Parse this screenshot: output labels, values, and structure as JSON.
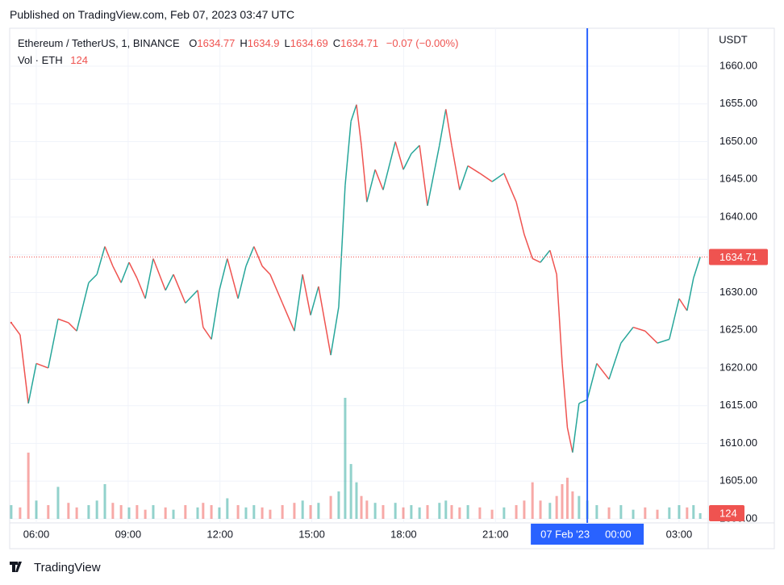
{
  "published": "Published on TradingView.com, Feb 07, 2023 03:47 UTC",
  "footer": "TradingView",
  "chart_data": {
    "type": "line",
    "title": "Ethereum / TetherUS, 1, BINANCE",
    "ohlc": [
      {
        "label": "O",
        "value": 1634.77
      },
      {
        "label": "H",
        "value": 1634.9
      },
      {
        "label": "L",
        "value": 1634.69
      },
      {
        "label": "C",
        "value": 1634.71
      }
    ],
    "change": "−0.07 (−0.00%)",
    "volume_title": "Vol · ETH",
    "currency": "USDT",
    "up_color": "#26a69a",
    "down_color": "#ef5350",
    "x": [
      5.18,
      5.47,
      5.74,
      6.0,
      6.39,
      6.71,
      7.05,
      7.32,
      7.71,
      7.98,
      8.24,
      8.5,
      8.77,
      9.03,
      9.29,
      9.56,
      9.82,
      10.22,
      10.48,
      10.87,
      11.27,
      11.45,
      11.72,
      11.98,
      12.24,
      12.59,
      12.85,
      13.11,
      13.38,
      13.64,
      14.04,
      14.43,
      14.7,
      14.96,
      15.22,
      15.62,
      15.88,
      16.09,
      16.28,
      16.46,
      16.62,
      16.8,
      17.07,
      17.33,
      17.73,
      17.99,
      18.25,
      18.52,
      18.78,
      19.17,
      19.38,
      19.57,
      19.83,
      20.1,
      20.49,
      20.89,
      21.28,
      21.68,
      21.94,
      22.21,
      22.47,
      22.78,
      23.0,
      23.18,
      23.35,
      23.52,
      23.73,
      24.0,
      24.31,
      24.71,
      25.1,
      25.5,
      25.89,
      26.29,
      26.68,
      27.0,
      27.26,
      27.47,
      27.69
    ],
    "values": [
      1626,
      1624.4,
      1615.3,
      1620.6,
      1620,
      1626.5,
      1626,
      1624.9,
      1631.3,
      1632.4,
      1636.1,
      1633.5,
      1631.3,
      1634,
      1631.9,
      1629.2,
      1634.5,
      1630.3,
      1632.4,
      1628.6,
      1630.3,
      1625.4,
      1623.8,
      1630.3,
      1634.5,
      1629.2,
      1633.5,
      1636.1,
      1633.5,
      1632.4,
      1628.6,
      1624.9,
      1632.4,
      1627,
      1630.8,
      1621.7,
      1628.1,
      1644.2,
      1652.7,
      1654.9,
      1649.5,
      1642,
      1646.3,
      1643.6,
      1650,
      1646.3,
      1648.4,
      1649.5,
      1641.5,
      1649.5,
      1654.3,
      1649.5,
      1643.6,
      1646.8,
      1645.8,
      1644.7,
      1645.8,
      1642,
      1637.7,
      1634.5,
      1634,
      1635.6,
      1632.4,
      1620.6,
      1612.1,
      1608.8,
      1615.3,
      1615.8,
      1620.6,
      1618.5,
      1623.3,
      1625.4,
      1624.9,
      1623.3,
      1623.8,
      1629.2,
      1627.6,
      1631.9,
      1634.71
    ],
    "volume": [
      300,
      250,
      1450,
      400,
      300,
      700,
      350,
      250,
      300,
      400,
      760,
      350,
      300,
      250,
      300,
      200,
      300,
      250,
      200,
      300,
      250,
      350,
      300,
      250,
      450,
      300,
      250,
      300,
      250,
      200,
      300,
      350,
      400,
      300,
      350,
      500,
      600,
      2650,
      1200,
      800,
      500,
      400,
      350,
      300,
      350,
      250,
      300,
      250,
      300,
      350,
      400,
      300,
      250,
      300,
      250,
      200,
      250,
      300,
      400,
      800,
      400,
      350,
      500,
      760,
      900,
      600,
      500,
      400,
      300,
      250,
      300,
      200,
      250,
      200,
      250,
      300,
      250,
      300,
      124
    ],
    "ylim": [
      1599.47,
      1665.03
    ],
    "yticks": [
      {
        "value": 1600,
        "label": "1600.00"
      },
      {
        "value": 1605,
        "label": "1605.00"
      },
      {
        "value": 1610,
        "label": "1610.00"
      },
      {
        "value": 1615,
        "label": "1615.00"
      },
      {
        "value": 1620,
        "label": "1620.00"
      },
      {
        "value": 1625,
        "label": "1625.00"
      },
      {
        "value": 1630,
        "label": "1630.00"
      },
      {
        "value": 1635,
        "label": "1635.00"
      },
      {
        "value": 1640,
        "label": "1640.00"
      },
      {
        "value": 1645,
        "label": "1645.00"
      },
      {
        "value": 1650,
        "label": "1650.00"
      },
      {
        "value": 1655,
        "label": "1655.00"
      },
      {
        "value": 1660,
        "label": "1660.00"
      }
    ],
    "xlim": [
      5.13,
      27.95
    ],
    "xticks": [
      {
        "value": 6,
        "label": "06:00"
      },
      {
        "value": 9,
        "label": "09:00"
      },
      {
        "value": 12,
        "label": "12:00"
      },
      {
        "value": 15,
        "label": "15:00"
      },
      {
        "value": 18,
        "label": "18:00"
      },
      {
        "value": 21,
        "label": "21:00"
      },
      {
        "value": 27,
        "label": "03:00"
      }
    ],
    "crosshair": {
      "x": 24,
      "date_label": "07 Feb '23",
      "time_label": "00:00"
    },
    "grid": true
  }
}
